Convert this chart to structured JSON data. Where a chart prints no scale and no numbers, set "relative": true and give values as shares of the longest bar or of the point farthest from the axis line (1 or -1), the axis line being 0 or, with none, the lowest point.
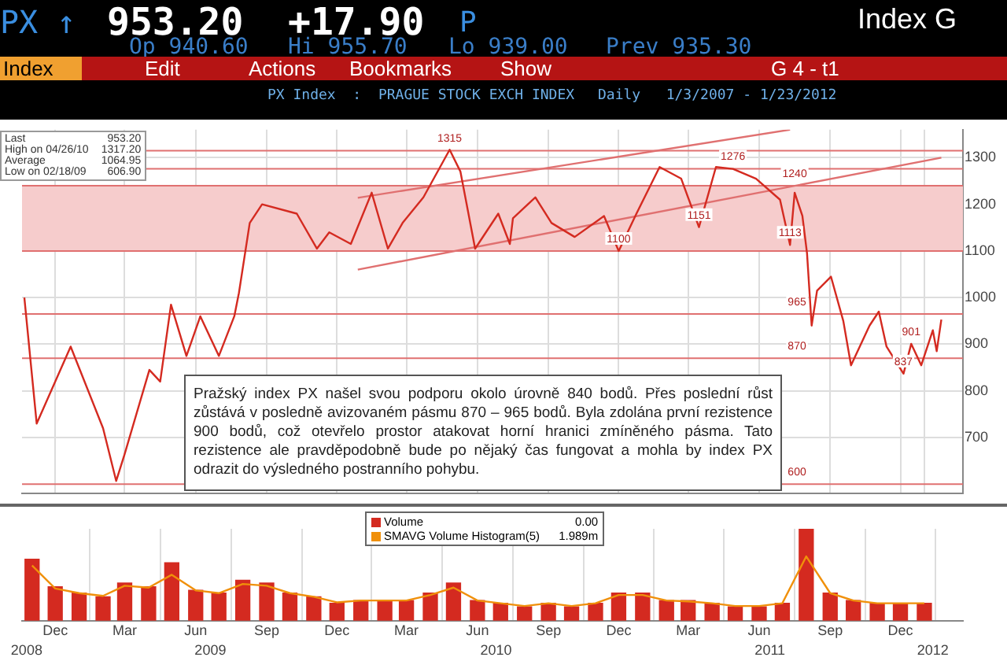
{
  "chart_data": [
    {
      "type": "line",
      "title": "PX Index  :  PRAGUE STOCK EXCH INDEX",
      "subtitle": "Daily   1/3/2007 - 1/23/2012",
      "xlim": [
        "2008-10-19",
        "2012-02-20"
      ],
      "ylim": [
        580,
        1360
      ],
      "xticks": [
        {
          "value": "2008-12-01",
          "label": null
        },
        {
          "value": "2009-03-01",
          "label": null
        },
        {
          "value": "2009-06-01",
          "label": null
        },
        {
          "value": "2009-09-01",
          "label": null
        },
        {
          "value": "2009-12-01",
          "label": null
        },
        {
          "value": "2010-03-01",
          "label": null
        },
        {
          "value": "2010-06-01",
          "label": null
        },
        {
          "value": "2010-09-01",
          "label": null
        },
        {
          "value": "2010-12-01",
          "label": null
        },
        {
          "value": "2011-03-01",
          "label": null
        },
        {
          "value": "2011-06-01",
          "label": null
        },
        {
          "value": "2011-09-01",
          "label": null
        },
        {
          "value": "2011-12-01",
          "label": null
        },
        {
          "value": "2012-01-01",
          "label": null
        }
      ],
      "yticks": [
        700,
        800,
        900,
        1000,
        1100,
        1200,
        1300
      ],
      "tick_labels": "y",
      "grid": true,
      "marker": "none",
      "series": [
        {
          "type": "line",
          "color": "#d42a20",
          "x": [
            "2008-10-22",
            "2008-11-07",
            "2008-12-21",
            "2009-02-01",
            "2009-02-18",
            "2009-03-01",
            "2009-04-02",
            "2009-04-16",
            "2009-04-30",
            "2009-05-20",
            "2009-06-07",
            "2009-07-01",
            "2009-07-21",
            "2009-07-27",
            "2009-08-10",
            "2009-08-26",
            "2009-10-10",
            "2009-11-05",
            "2009-11-21",
            "2009-12-19",
            "2010-01-15",
            "2010-02-05",
            "2010-02-24",
            "2010-03-23",
            "2010-04-26",
            "2010-05-10",
            "2010-05-29",
            "2010-06-28",
            "2010-07-13",
            "2010-07-17",
            "2010-08-15",
            "2010-09-05",
            "2010-10-05",
            "2010-11-12",
            "2010-12-01",
            "2010-12-24",
            "2011-01-23",
            "2011-02-20",
            "2011-03-15",
            "2011-04-06",
            "2011-04-28",
            "2011-05-28",
            "2011-06-28",
            "2011-07-11",
            "2011-07-17",
            "2011-07-27",
            "2011-08-02",
            "2011-08-08",
            "2011-08-15",
            "2011-09-02",
            "2011-09-18",
            "2011-09-28",
            "2011-10-22",
            "2011-11-03",
            "2011-11-13",
            "2011-12-05",
            "2011-12-15",
            "2011-12-28",
            "2012-01-12",
            "2012-01-17",
            "2012-01-23"
          ],
          "values": [
            1000,
            730,
            895,
            720,
            607,
            665,
            845,
            820,
            985,
            875,
            960,
            875,
            960,
            1010,
            1160,
            1200,
            1180,
            1105,
            1140,
            1115,
            1225,
            1105,
            1160,
            1215,
            1317,
            1270,
            1105,
            1180,
            1115,
            1170,
            1215,
            1160,
            1130,
            1175,
            1100,
            1180,
            1280,
            1255,
            1151,
            1280,
            1276,
            1255,
            1210,
            1113,
            1225,
            1175,
            1095,
            940,
            1015,
            1045,
            950,
            855,
            940,
            970,
            895,
            837,
            901,
            855,
            930,
            885,
            953
          ]
        },
        {
          "type": "line",
          "color": "#e07070",
          "x": [
            "2009-12-28",
            "2011-07-11"
          ],
          "values": [
            1214,
            1360
          ]
        },
        {
          "type": "line",
          "color": "#e07070",
          "x": [
            "2009-12-28",
            "2012-01-23"
          ],
          "values": [
            1060,
            1300
          ]
        }
      ],
      "ref_lines": [
        {
          "axis": "y",
          "value": 1315,
          "color": "#e07070"
        },
        {
          "axis": "y",
          "value": 1276,
          "color": "#e07070"
        },
        {
          "axis": "y",
          "value": 1240,
          "color": "#e07070"
        },
        {
          "axis": "y",
          "value": 1100,
          "color": "#e07070"
        },
        {
          "axis": "y",
          "value": 965,
          "color": "#e07070"
        },
        {
          "axis": "y",
          "value": 870,
          "color": "#e07070"
        },
        {
          "axis": "y",
          "value": 600,
          "color": "#e07070"
        }
      ],
      "bands": [
        {
          "axis": "y",
          "from": 1100,
          "to": 1240,
          "color": "#f6cccc"
        }
      ],
      "annotations": [
        "PX ↑",
        "953.20",
        "+17.90",
        "P",
        "Index G",
        "Op 940.60",
        "Hi 955.70",
        "Lo 939.00",
        "Prev 935.30",
        "Index",
        "Edit",
        "Actions",
        "Bookmarks",
        "Show",
        "G 4 - t1",
        "Last",
        "953.20",
        "High on 04/26/10",
        "1317.20",
        "Average",
        "1064.95",
        "Low on 02/18/09",
        "606.90",
        "Pražský index PX našel svou podporu okolo úrovně 840 bodů. Přes poslední růst zůstává v posledně avizovaném pásmu 870 – 965 bodů. Byla zdolána první rezistence 900 bodů, což otevřelo prostor atakovat horní hranici zmíněného pásma. Tato rezistence ale pravděpodobně bude po nějaký čas fungovat a mohla by index PX odrazit do výsledného postranního pohybu.",
        {
          "text": "1315",
          "x": "2010-04-26",
          "y": 1315
        },
        {
          "text": "1276",
          "x": "2011-04-28",
          "y": 1276
        },
        {
          "text": "1240",
          "x": "2011-07-17",
          "y": 1240
        },
        {
          "text": "1151",
          "x": "2011-03-15",
          "y": 1151
        },
        {
          "text": "1100",
          "x": "2010-12-01",
          "y": 1100
        },
        {
          "text": "1113",
          "x": "2011-07-11",
          "y": 1113
        },
        {
          "text": "965",
          "x": "2011-07-20",
          "y": 965
        },
        {
          "text": "870",
          "x": "2011-07-20",
          "y": 870
        },
        {
          "text": "837",
          "x": "2011-12-05",
          "y": 837
        },
        {
          "text": "901",
          "x": "2011-12-15",
          "y": 901
        },
        {
          "text": "600",
          "x": "2011-07-20",
          "y": 600
        }
      ]
    },
    {
      "type": "bar",
      "relative": true,
      "legend": "top",
      "grid": "x",
      "marker": "none",
      "xlim": [
        "2008-10-19",
        "2012-02-20"
      ],
      "xticks": [
        {
          "value": "2008-12-01",
          "label": "Dec"
        },
        {
          "value": "2009-03-01",
          "label": "Mar"
        },
        {
          "value": "2009-06-01",
          "label": "Jun"
        },
        {
          "value": "2009-09-01",
          "label": "Sep"
        },
        {
          "value": "2009-12-01",
          "label": "Dec"
        },
        {
          "value": "2010-03-01",
          "label": "Mar"
        },
        {
          "value": "2010-06-01",
          "label": "Jun"
        },
        {
          "value": "2010-09-01",
          "label": "Sep"
        },
        {
          "value": "2010-12-01",
          "label": "Dec"
        },
        {
          "value": "2011-03-01",
          "label": "Mar"
        },
        {
          "value": "2011-06-01",
          "label": "Jun"
        },
        {
          "value": "2011-09-01",
          "label": "Sep"
        },
        {
          "value": "2011-12-01",
          "label": "Dec"
        }
      ],
      "x2lim": [
        "2008-10-19",
        "2012-02-20"
      ],
      "x2ticks": [
        {
          "value": "2008-10-25",
          "label": "2008"
        },
        {
          "value": "2009-06-20",
          "label": "2009"
        },
        {
          "value": "2010-06-25",
          "label": "2010"
        },
        {
          "value": "2011-06-15",
          "label": "2011"
        },
        {
          "value": "2012-01-12",
          "label": "2012"
        }
      ],
      "x": [
        "2008-11-01",
        "2008-12-01",
        "2009-01-01",
        "2009-02-01",
        "2009-03-01",
        "2009-04-01",
        "2009-05-01",
        "2009-06-01",
        "2009-07-01",
        "2009-08-01",
        "2009-09-01",
        "2009-10-01",
        "2009-11-01",
        "2009-12-01",
        "2010-01-01",
        "2010-02-01",
        "2010-03-01",
        "2010-04-01",
        "2010-05-01",
        "2010-06-01",
        "2010-07-01",
        "2010-08-01",
        "2010-09-01",
        "2010-10-01",
        "2010-11-01",
        "2010-12-01",
        "2011-01-01",
        "2011-02-01",
        "2011-03-01",
        "2011-04-01",
        "2011-05-01",
        "2011-06-01",
        "2011-07-01",
        "2011-08-01",
        "2011-09-01",
        "2011-10-01",
        "2011-11-01",
        "2011-12-01",
        "2012-01-01"
      ],
      "series": [
        {
          "name": "Volume",
          "type": "bar",
          "color": "#d42a20",
          "values": [
            0.67,
            0.37,
            0.3,
            0.26,
            0.41,
            0.37,
            0.63,
            0.33,
            0.3,
            0.44,
            0.41,
            0.3,
            0.26,
            0.19,
            0.22,
            0.22,
            0.22,
            0.3,
            0.41,
            0.22,
            0.19,
            0.15,
            0.19,
            0.15,
            0.19,
            0.3,
            0.3,
            0.22,
            0.22,
            0.19,
            0.15,
            0.15,
            0.19,
            1,
            0.3,
            0.22,
            0.19,
            0.19,
            0.19
          ]
        },
        {
          "name": "SMAVG Volume Histogram(5)",
          "type": "line",
          "color": "#f0900a",
          "values": [
            0.6,
            0.35,
            0.3,
            0.27,
            0.38,
            0.36,
            0.5,
            0.33,
            0.3,
            0.4,
            0.38,
            0.3,
            0.26,
            0.2,
            0.22,
            0.22,
            0.22,
            0.28,
            0.36,
            0.22,
            0.19,
            0.16,
            0.19,
            0.16,
            0.19,
            0.28,
            0.28,
            0.22,
            0.21,
            0.19,
            0.16,
            0.16,
            0.19,
            0.7,
            0.3,
            0.22,
            0.19,
            0.19,
            0.19
          ]
        }
      ],
      "annotations": [
        "0.00",
        "1.989m"
      ]
    }
  ]
}
